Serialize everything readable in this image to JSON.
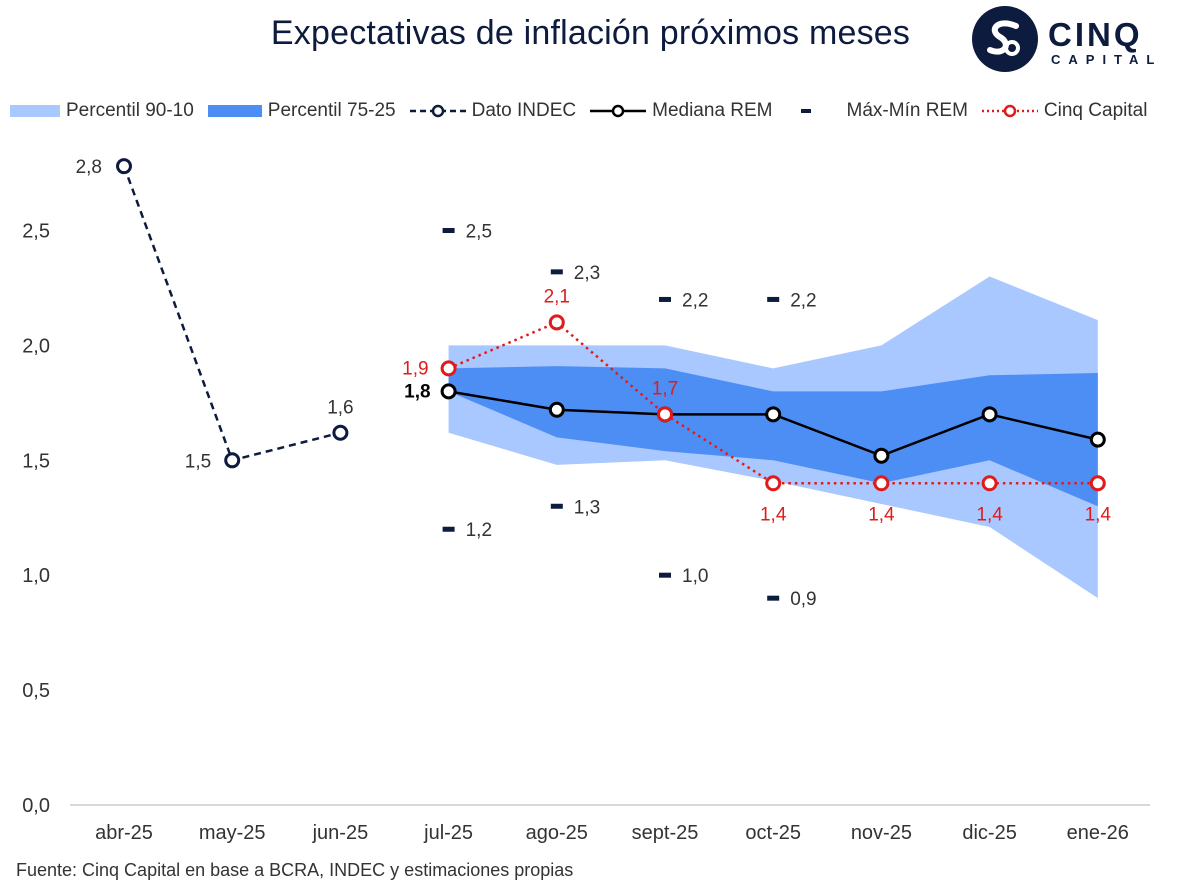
{
  "footer": "Fuente: Cinq Capital en base a BCRA, INDEC y estimaciones propias",
  "logo": {
    "main": "CINQ",
    "sub": "CAPITAL"
  },
  "colors": {
    "navy": "#0d1b3e",
    "band90": "#a8c8ff",
    "band75": "#4d8ef5",
    "median": "#000000",
    "cinq": "#e01b1b",
    "axis": "#cccccc"
  },
  "chart_data": {
    "type": "line",
    "title": "Expectativas de inflación próximos meses",
    "categories": [
      "abr-25",
      "may-25",
      "jun-25",
      "jul-25",
      "ago-25",
      "sept-25",
      "oct-25",
      "nov-25",
      "dic-25",
      "ene-26"
    ],
    "yticks": [
      "0,0",
      "0,5",
      "1,0",
      "1,5",
      "2,0",
      "2,5"
    ],
    "ylim": [
      0,
      3.0
    ],
    "legend": [
      {
        "key": "p90",
        "label": "Percentil 90-10"
      },
      {
        "key": "p75",
        "label": "Percentil 75-25"
      },
      {
        "key": "indec",
        "label": "Dato INDEC"
      },
      {
        "key": "median",
        "label": "Mediana REM"
      },
      {
        "key": "maxmin",
        "label": "Máx-Mín REM"
      },
      {
        "key": "cinq",
        "label": "Cinq Capital"
      }
    ],
    "series": {
      "dato_indec": {
        "name": "Dato INDEC",
        "points": [
          {
            "i": 0,
            "v": 2.78,
            "label": "2,8"
          },
          {
            "i": 1,
            "v": 1.5,
            "label": "1,5"
          },
          {
            "i": 2,
            "v": 1.62,
            "label": "1,6"
          }
        ]
      },
      "mediana_rem": {
        "name": "Mediana REM",
        "points": [
          {
            "i": 3,
            "v": 1.8,
            "label": "1,8"
          },
          {
            "i": 4,
            "v": 1.72
          },
          {
            "i": 5,
            "v": 1.7
          },
          {
            "i": 6,
            "v": 1.7
          },
          {
            "i": 7,
            "v": 1.52
          },
          {
            "i": 8,
            "v": 1.7
          },
          {
            "i": 9,
            "v": 1.59
          }
        ]
      },
      "cinq_capital": {
        "name": "Cinq Capital",
        "points": [
          {
            "i": 3,
            "v": 1.9,
            "label": "1,9"
          },
          {
            "i": 4,
            "v": 2.1,
            "label": "2,1"
          },
          {
            "i": 5,
            "v": 1.7,
            "label": "1,7"
          },
          {
            "i": 6,
            "v": 1.4,
            "label": "1,4"
          },
          {
            "i": 7,
            "v": 1.4,
            "label": "1,4"
          },
          {
            "i": 8,
            "v": 1.4,
            "label": "1,4"
          },
          {
            "i": 9,
            "v": 1.4,
            "label": "1,4"
          }
        ]
      },
      "percentil_90_10": {
        "name": "Percentil 90-10",
        "index": [
          3,
          4,
          5,
          6,
          7,
          8,
          9
        ],
        "upper": [
          2.0,
          2.0,
          2.0,
          1.9,
          2.0,
          2.3,
          2.11
        ],
        "lower": [
          1.62,
          1.48,
          1.5,
          1.41,
          1.31,
          1.21,
          0.9
        ]
      },
      "percentil_75_25": {
        "name": "Percentil 75-25",
        "index": [
          3,
          4,
          5,
          6,
          7,
          8,
          9
        ],
        "upper": [
          1.9,
          1.91,
          1.9,
          1.8,
          1.8,
          1.87,
          1.88
        ],
        "lower": [
          1.8,
          1.6,
          1.54,
          1.5,
          1.4,
          1.5,
          1.3
        ]
      },
      "max_min_rem": {
        "name": "Máx-Mín REM",
        "max": [
          {
            "i": 3,
            "v": 2.5,
            "label": "2,5"
          },
          {
            "i": 4,
            "v": 2.32,
            "label": "2,3"
          },
          {
            "i": 5,
            "v": 2.2,
            "label": "2,2"
          },
          {
            "i": 6,
            "v": 2.2,
            "label": "2,2"
          }
        ],
        "min": [
          {
            "i": 3,
            "v": 1.2,
            "label": "1,2"
          },
          {
            "i": 4,
            "v": 1.3,
            "label": "1,3"
          },
          {
            "i": 5,
            "v": 1.0,
            "label": "1,0"
          },
          {
            "i": 6,
            "v": 0.9,
            "label": "0,9"
          }
        ]
      }
    }
  }
}
